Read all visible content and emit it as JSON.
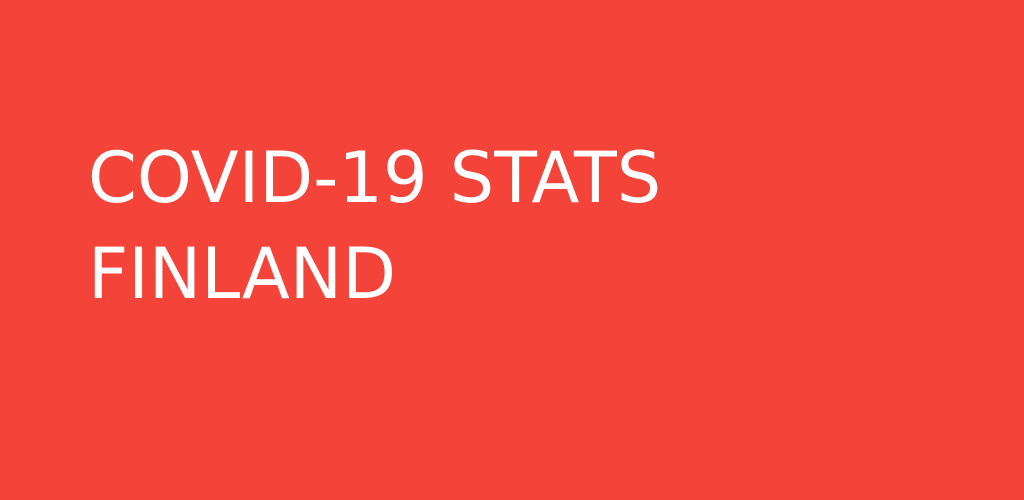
{
  "banner": {
    "background_color": "#f44339",
    "text_color": "#ffffff",
    "title_lines": [
      "COVID-19 STATS",
      "FINLAND"
    ]
  }
}
